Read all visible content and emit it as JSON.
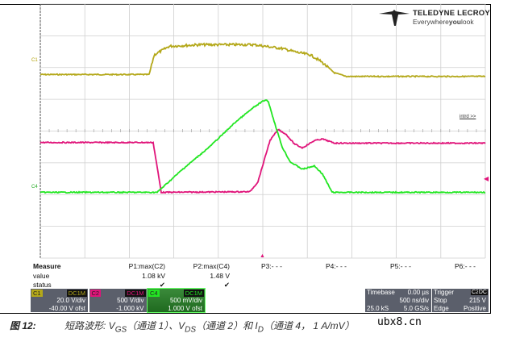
{
  "logo": {
    "brand": "TELEDYNE LECROY",
    "tagline_pre": "Everywhere",
    "tagline_bold": "you",
    "tagline_post": "look"
  },
  "screen_labels": {
    "c1_marker": "C1",
    "c4_marker": "C4",
    "zoom_link": "intrd >>"
  },
  "colors": {
    "c1": "#b4a81a",
    "c2": "#e0147a",
    "c4": "#22e622",
    "grid": "#cfcfcf"
  },
  "measure": {
    "title": "Measure",
    "row_value": "value",
    "row_status": "status",
    "params": [
      {
        "label": "P1:max(C2)",
        "value": "1.08 kV",
        "status": "✔"
      },
      {
        "label": "P2:max(C4)",
        "value": "1.48 V",
        "status": "✔"
      },
      {
        "label": "P3:- - -",
        "value": "",
        "status": ""
      },
      {
        "label": "P4:- - -",
        "value": "",
        "status": ""
      },
      {
        "label": "P5:- - -",
        "value": "",
        "status": ""
      },
      {
        "label": "P6:- - -",
        "value": "",
        "status": ""
      }
    ]
  },
  "channels": [
    {
      "name": "C1",
      "coupling": "DC1M",
      "vdiv": "20.0 V/div",
      "offset": "-40.00 V ofst",
      "color": "#b4a81a"
    },
    {
      "name": "C2",
      "coupling": "DC1M",
      "vdiv": "500 V/div",
      "offset": "-1.000 kV",
      "color": "#e0147a"
    },
    {
      "name": "C4",
      "coupling": "DC1M",
      "vdiv": "500 mV/div",
      "offset": "1.000 V ofst",
      "color": "#22e622"
    }
  ],
  "timebase": {
    "label": "Timebase",
    "delay": "0.00 µs",
    "tdiv": "500 ns/div",
    "samples": "25.0 kS",
    "rate": "5.0 GS/s"
  },
  "trigger": {
    "label": "Trigger",
    "source": "C2",
    "coupling": "DC",
    "mode": "Stop",
    "level": "215 V",
    "type": "Edge",
    "slope": "Positive"
  },
  "caption": {
    "figure": "图 12:",
    "text": "短路波形: V",
    "gs": "GS",
    "t2": "（通道 1）、V",
    "ds": "DS",
    "t3": "（通道 2）和 I",
    "d": "D",
    "t4": "（通道 4， 1 A/mV）"
  },
  "watermark": "ubx8.cn",
  "chart_data": {
    "type": "line",
    "x_unit": "ns",
    "y_unit": "div",
    "xlim": [
      -2500,
      2500
    ],
    "ylim": [
      -4,
      4
    ],
    "grid": true,
    "series": [
      {
        "name": "C1",
        "color": "#b4a81a",
        "points": [
          [
            -2500,
            1.78
          ],
          [
            -1277,
            1.78
          ],
          [
            -1220,
            2.4
          ],
          [
            -1051,
            2.67
          ],
          [
            -700,
            2.72
          ],
          [
            -100,
            2.72
          ],
          [
            0,
            2.68
          ],
          [
            217,
            2.6
          ],
          [
            400,
            2.47
          ],
          [
            534,
            2.4
          ],
          [
            650,
            2.2
          ],
          [
            806,
            1.83
          ],
          [
            942,
            1.72
          ],
          [
            2500,
            1.72
          ]
        ]
      },
      {
        "name": "C2",
        "color": "#e0147a",
        "points": [
          [
            -2500,
            -0.36
          ],
          [
            -1232,
            -0.36
          ],
          [
            -1141,
            -1.93
          ],
          [
            -145,
            -1.91
          ],
          [
            -55,
            -1.6
          ],
          [
            80,
            -0.3
          ],
          [
            172,
            0.05
          ],
          [
            260,
            -0.1
          ],
          [
            353,
            -0.4
          ],
          [
            444,
            -0.53
          ],
          [
            580,
            -0.3
          ],
          [
            670,
            -0.25
          ],
          [
            806,
            -0.38
          ],
          [
            2500,
            -0.38
          ]
        ]
      },
      {
        "name": "C4",
        "color": "#22e622",
        "points": [
          [
            -2500,
            -1.93
          ],
          [
            -1187,
            -1.93
          ],
          [
            -900,
            -1.2
          ],
          [
            -600,
            -0.5
          ],
          [
            -300,
            0.3
          ],
          [
            -100,
            0.75
          ],
          [
            17,
            0.97
          ],
          [
            60,
            0.95
          ],
          [
            127,
            0.31
          ],
          [
            217,
            -0.5
          ],
          [
            308,
            -0.97
          ],
          [
            444,
            -1.2
          ],
          [
            580,
            -1.1
          ],
          [
            670,
            -1.35
          ],
          [
            779,
            -1.93
          ],
          [
            2500,
            -1.93
          ]
        ]
      }
    ]
  }
}
